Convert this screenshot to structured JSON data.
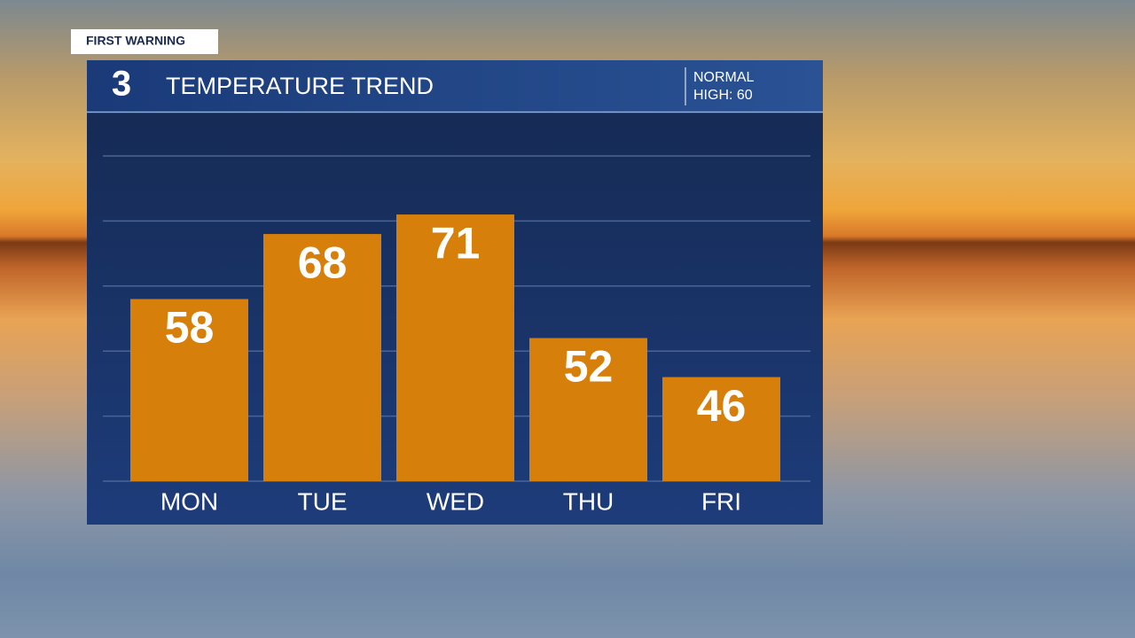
{
  "chart_data": {
    "type": "bar",
    "tag": "FIRST WARNING",
    "logo": "3",
    "title": "TEMPERATURE TREND",
    "normal_label": "NORMAL",
    "normal_value": "HIGH: 60",
    "categories": [
      "MON",
      "TUE",
      "WED",
      "THU",
      "FRI"
    ],
    "values": [
      58,
      68,
      71,
      52,
      46
    ],
    "color": "#d67f0a",
    "ylim": [
      30,
      80
    ],
    "yticks": [
      30,
      40,
      50,
      60,
      70,
      80
    ],
    "grid": true
  }
}
